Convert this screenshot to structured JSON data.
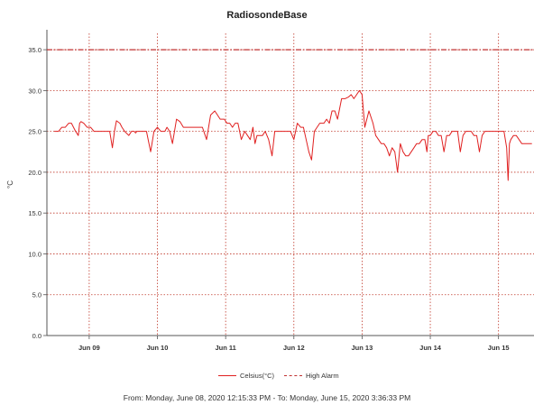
{
  "chart_data": {
    "type": "line",
    "title": "RadiosondeBase",
    "ylabel": "°C",
    "ylim": [
      0,
      37
    ],
    "yticks": [
      "0.0",
      "5.0",
      "10.0",
      "15.0",
      "20.0",
      "25.0",
      "30.0",
      "35.0"
    ],
    "x_range_days": [
      "2020-06-08 12:15:33",
      "2020-06-15 15:36:33"
    ],
    "xtick_labels": [
      "Jun 09",
      "Jun 10",
      "Jun 11",
      "Jun 12",
      "Jun 13",
      "Jun 14",
      "Jun 15"
    ],
    "xtick_days": [
      1,
      2,
      3,
      4,
      5,
      6,
      7
    ],
    "grid": true,
    "legend_position": "bottom",
    "series": [
      {
        "name": "Celsius(°C)",
        "color": "#e02020",
        "style": "solid",
        "x_days": [
          0.49,
          0.55,
          0.6,
          0.65,
          0.7,
          0.74,
          0.8,
          0.84,
          0.86,
          0.88,
          0.92,
          0.97,
          1.02,
          1.07,
          1.12,
          1.18,
          1.25,
          1.3,
          1.34,
          1.37,
          1.4,
          1.45,
          1.48,
          1.52,
          1.58,
          1.62,
          1.66,
          1.68,
          1.7,
          1.73,
          1.76,
          1.8,
          1.84,
          1.9,
          1.95,
          2.0,
          2.05,
          2.08,
          2.11,
          2.14,
          2.18,
          2.22,
          2.28,
          2.33,
          2.38,
          2.43,
          2.48,
          2.54,
          2.58,
          2.62,
          2.66,
          2.72,
          2.78,
          2.84,
          2.88,
          2.92,
          2.95,
          2.98,
          3.02,
          3.06,
          3.1,
          3.14,
          3.18,
          3.23,
          3.28,
          3.32,
          3.36,
          3.4,
          3.43,
          3.46,
          3.5,
          3.54,
          3.58,
          3.63,
          3.68,
          3.72,
          3.76,
          3.8,
          3.86,
          3.9,
          3.95,
          4.0,
          4.05,
          4.1,
          4.14,
          4.18,
          4.22,
          4.26,
          4.3,
          4.34,
          4.38,
          4.44,
          4.48,
          4.52,
          4.56,
          4.6,
          4.64,
          4.7,
          4.75,
          4.8,
          4.84,
          4.88,
          4.92,
          4.96,
          5.0,
          5.04,
          5.1,
          5.16,
          5.2,
          5.24,
          5.28,
          5.32,
          5.36,
          5.4,
          5.44,
          5.48,
          5.52,
          5.56,
          5.6,
          5.64,
          5.68,
          5.72,
          5.76,
          5.8,
          5.84,
          5.88,
          5.92,
          5.95,
          5.97,
          6.0,
          6.04,
          6.08,
          6.12,
          6.16,
          6.2,
          6.24,
          6.28,
          6.32,
          6.36,
          6.4,
          6.44,
          6.48,
          6.52,
          6.56,
          6.6,
          6.64,
          6.68,
          6.72,
          6.76,
          6.8,
          6.84,
          6.88,
          6.92,
          6.96,
          7.0,
          7.04,
          7.08,
          7.12,
          7.14,
          7.16,
          7.18,
          7.22,
          7.26,
          7.3,
          7.34,
          7.36,
          7.38,
          7.4,
          7.44,
          7.49
        ],
        "values": [
          25.0,
          25.0,
          25.5,
          25.5,
          26.0,
          26.0,
          25.0,
          24.5,
          26.0,
          26.2,
          26.0,
          25.5,
          25.5,
          25.0,
          25.0,
          25.0,
          25.0,
          25.0,
          23.0,
          25.0,
          26.3,
          26.0,
          25.5,
          25.0,
          24.5,
          25.0,
          25.0,
          24.8,
          25.0,
          25.0,
          25.0,
          25.0,
          25.0,
          22.5,
          25.0,
          25.5,
          25.0,
          25.0,
          25.0,
          25.5,
          25.0,
          23.5,
          26.5,
          26.2,
          25.5,
          25.5,
          25.5,
          25.5,
          25.5,
          25.5,
          25.5,
          24.0,
          27.0,
          27.5,
          27.0,
          26.5,
          26.5,
          26.5,
          26.0,
          26.0,
          25.5,
          26.0,
          26.0,
          24.0,
          25.0,
          24.5,
          24.0,
          25.5,
          23.5,
          24.5,
          24.5,
          24.5,
          25.0,
          24.0,
          22.0,
          25.0,
          25.0,
          25.0,
          25.0,
          25.0,
          25.0,
          24.0,
          26.0,
          25.5,
          25.5,
          24.0,
          22.5,
          21.5,
          25.0,
          25.5,
          26.0,
          26.0,
          26.5,
          26.0,
          27.5,
          27.5,
          26.5,
          29.0,
          29.0,
          29.2,
          29.5,
          29.0,
          29.5,
          30.0,
          29.5,
          25.5,
          27.5,
          26.0,
          24.5,
          24.0,
          23.5,
          23.5,
          23.0,
          22.0,
          23.0,
          22.5,
          20.0,
          23.5,
          22.5,
          22.0,
          22.0,
          22.5,
          23.0,
          23.5,
          23.5,
          24.0,
          24.0,
          22.5,
          24.5,
          24.5,
          25.0,
          25.0,
          24.5,
          24.5,
          22.5,
          24.5,
          24.5,
          25.0,
          25.0,
          25.0,
          22.5,
          24.5,
          25.0,
          25.0,
          25.0,
          24.5,
          24.5,
          22.5,
          24.5,
          25.0,
          25.0,
          25.0,
          25.0,
          25.0,
          25.0,
          25.0,
          25.0,
          23.0,
          19.0,
          23.5,
          24.0,
          24.5,
          24.5,
          24.0,
          23.5,
          23.5,
          23.5,
          23.5,
          23.5,
          23.5
        ]
      },
      {
        "name": "High Alarm",
        "color": "#c03030",
        "style": "dash-dot",
        "values_constant": 35.0
      }
    ]
  },
  "legend": {
    "celsius_label": "Celsius(°C)",
    "alarm_label": "High Alarm"
  },
  "footer": {
    "range_text": "From: Monday, June 08, 2020 12:15:33 PM  -  To: Monday, June 15, 2020 3:36:33 PM"
  }
}
